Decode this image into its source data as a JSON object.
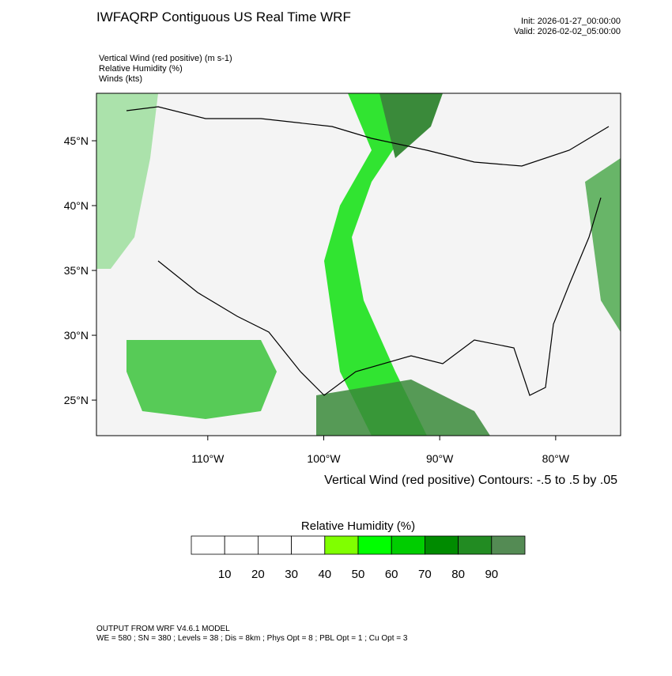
{
  "header": {
    "title": "IWFAQRP Contiguous US Real Time WRF",
    "init": "Init: 2026-01-27_00:00:00",
    "valid": "Valid: 2026-02-02_05:00:00"
  },
  "fields": [
    "Vertical Wind (red positive)   (m s-1)",
    "Relative Humidity   (%)",
    "Winds   (kts)"
  ],
  "map": {
    "latlim": [
      22.26,
      48.66
    ],
    "lonlim": [
      -119.6,
      -74.4
    ],
    "lat_ticks": [
      {
        "value": 45,
        "label": "45°N"
      },
      {
        "value": 40,
        "label": "40°N"
      },
      {
        "value": 35,
        "label": "35°N"
      },
      {
        "value": 30,
        "label": "30°N"
      },
      {
        "value": 25,
        "label": "25°N"
      }
    ],
    "lon_ticks": [
      {
        "value": -110,
        "label": "110°W"
      },
      {
        "value": -100,
        "label": "100°W"
      },
      {
        "value": -90,
        "label": "90°W"
      },
      {
        "value": -80,
        "label": "80°W"
      }
    ],
    "contour_note": "Vertical Wind (red positive) Contours: -.5 to .5 by .05"
  },
  "colorbar": {
    "title": "Relative Humidity  (%)",
    "ticks": [
      10,
      20,
      30,
      40,
      50,
      60,
      70,
      80,
      90
    ],
    "colors": [
      "#ffffff",
      "#ffffff",
      "#ffffff",
      "#ffffff",
      "#80ff00",
      "#00ff00",
      "#00cd00",
      "#008b00",
      "#228b22",
      "#548b54"
    ]
  },
  "footer": {
    "model": "OUTPUT FROM WRF V4.6.1 MODEL",
    "settings": "WE = 580 ; SN = 380 ; Levels = 38 ; Dis = 8km ; Phys Opt = 8 ; PBL Opt = 1 ; Cu Opt = 3"
  }
}
